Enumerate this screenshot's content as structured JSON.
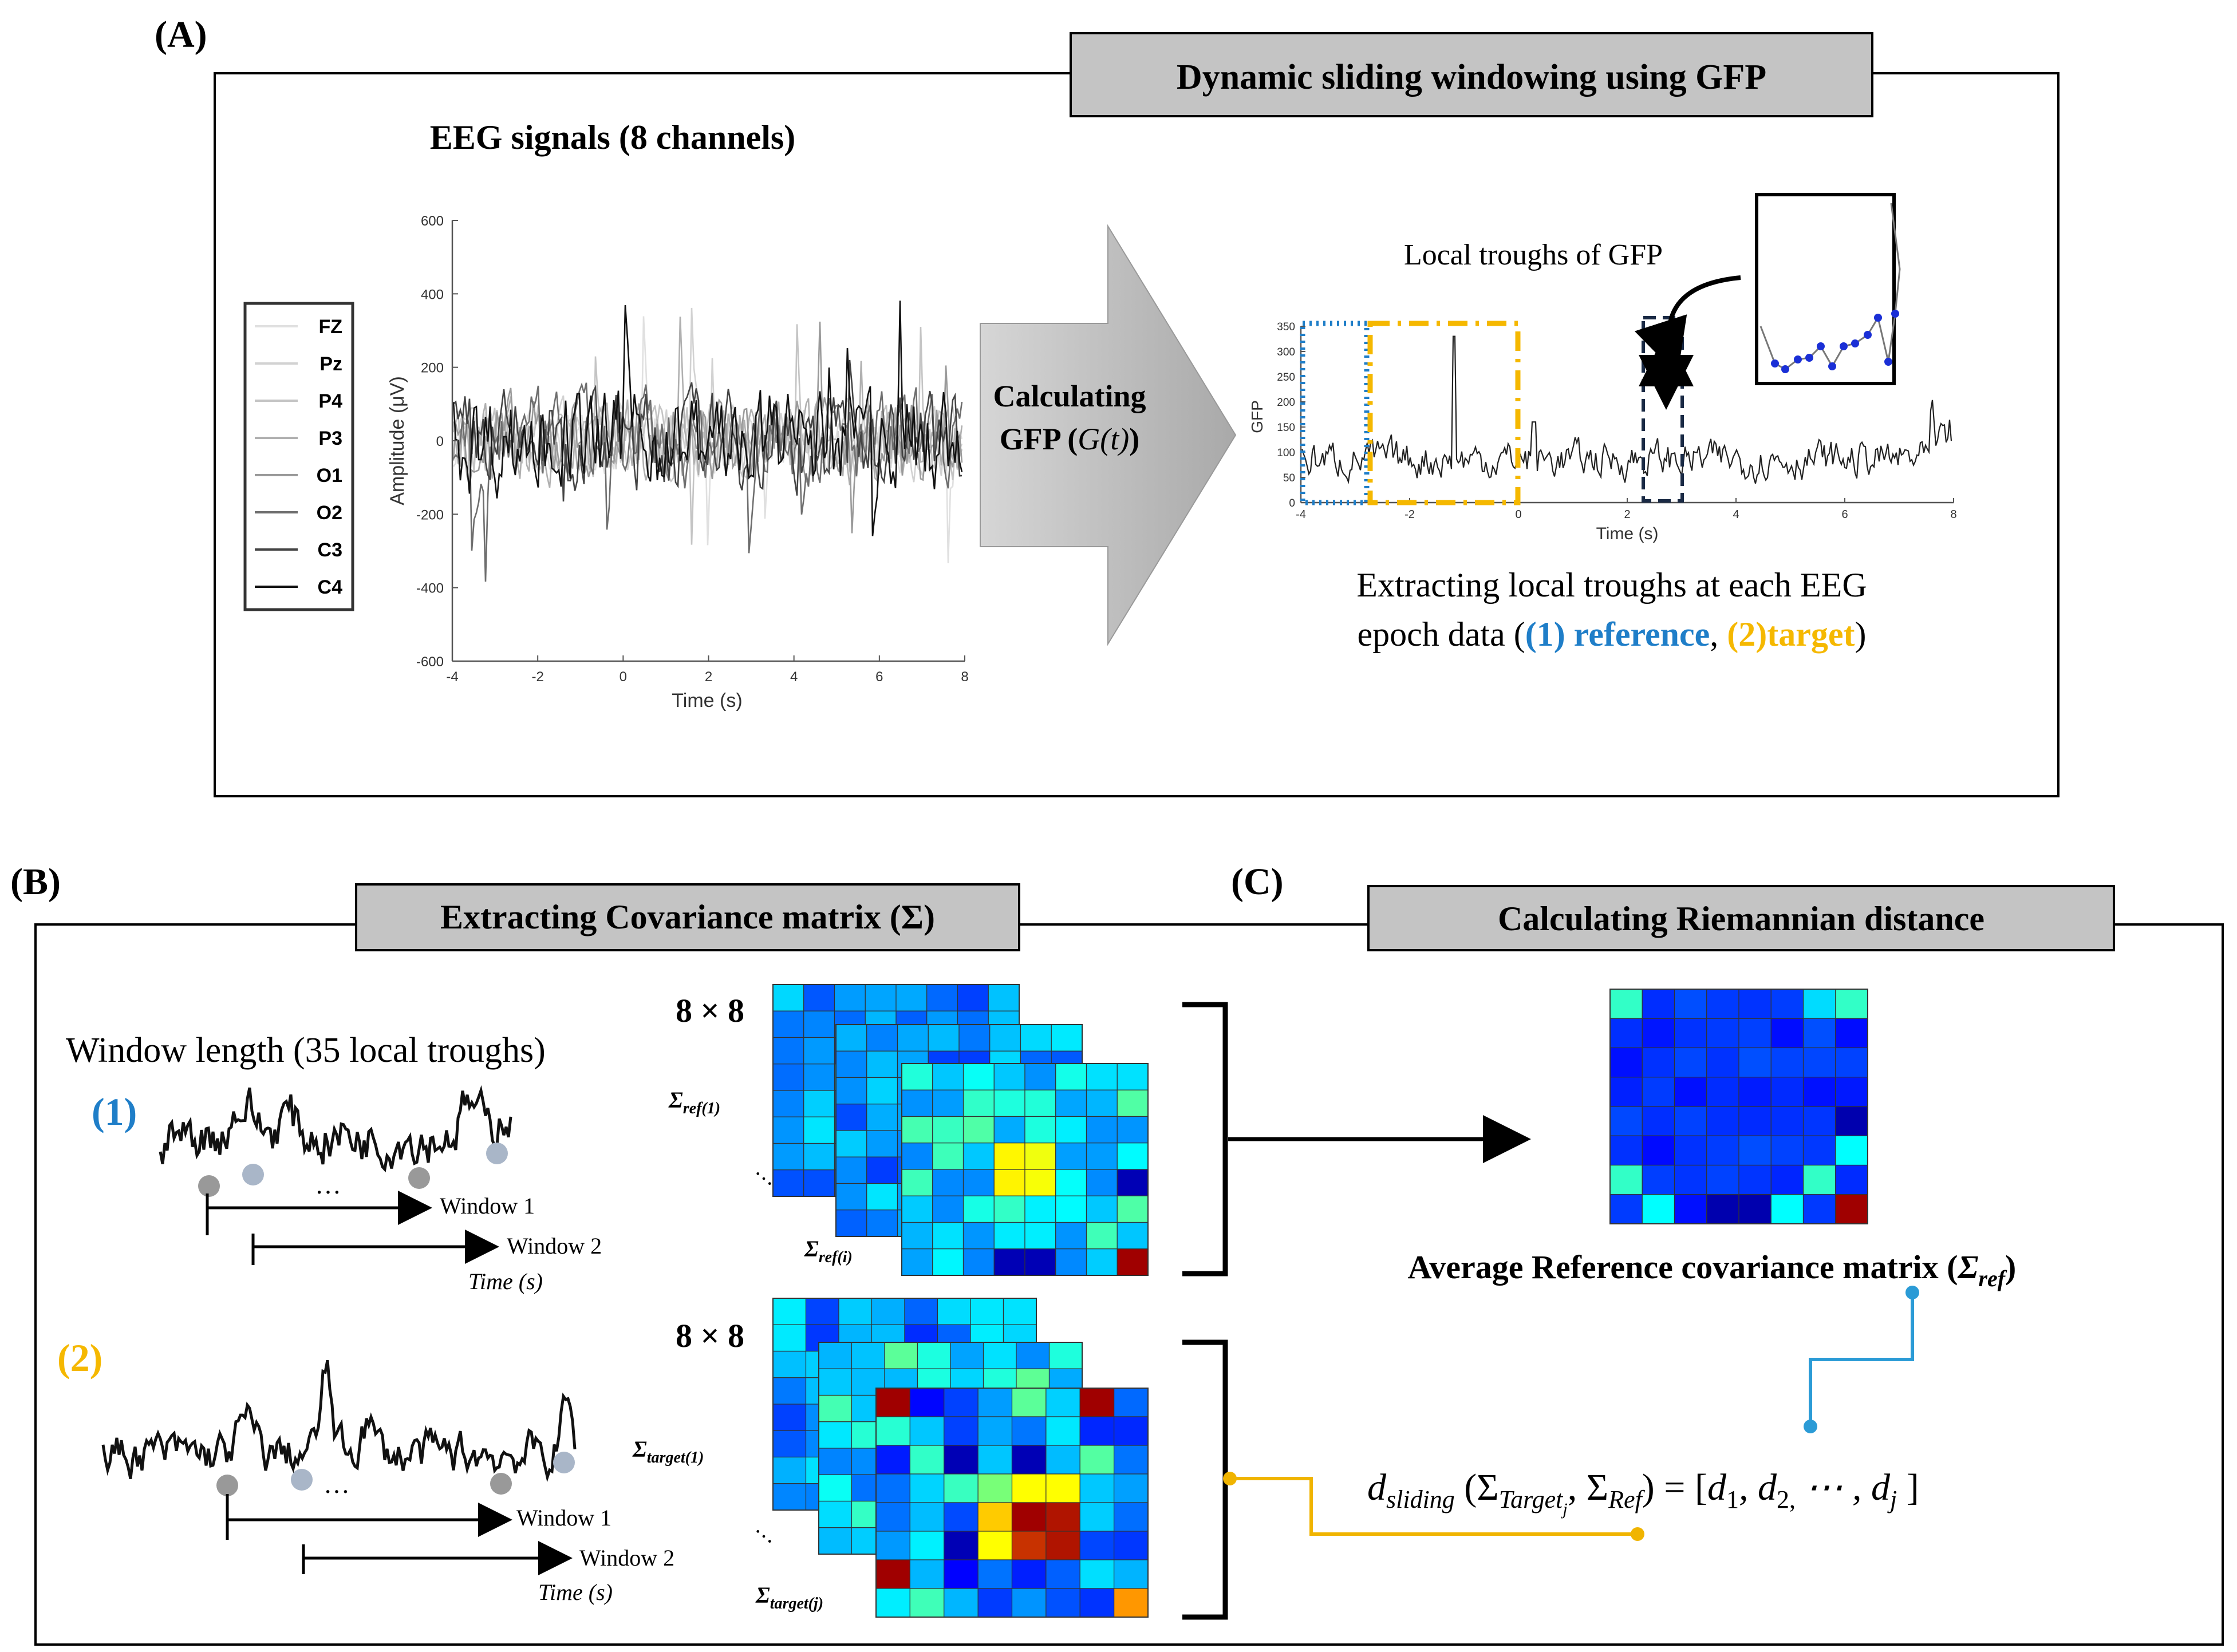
{
  "panel_a": {
    "label": "(A)",
    "banner": "Dynamic sliding windowing using GFP",
    "eeg_title": "EEG signals (8 channels)",
    "eeg_plot": {
      "ylabel": "Amplitude (μV)",
      "xlabel": "Time (s)",
      "yticks": [
        "600",
        "400",
        "200",
        "0",
        "-200",
        "-400",
        "-600"
      ],
      "xticks": [
        "-4",
        "-2",
        "0",
        "2",
        "4",
        "6",
        "8"
      ],
      "legend": [
        "FZ",
        "Pz",
        "P4",
        "P3",
        "O1",
        "O2",
        "C3",
        "C4"
      ]
    },
    "arrow_text": [
      "Calculating",
      "GFP (",
      "G(t)",
      ")"
    ],
    "gfp_plot": {
      "ylabel": "GFP",
      "xlabel": "Time (s)",
      "yticks": [
        "350",
        "300",
        "250",
        "200",
        "150",
        "100",
        "50",
        "0"
      ],
      "xticks": [
        "-4",
        "-2",
        "0",
        "2",
        "4",
        "6",
        "8"
      ]
    },
    "inset_label": "Local troughs of GFP",
    "caption_line1": "Extracting  local troughs at each EEG",
    "caption_line2_a": "epoch data (",
    "caption_ref": "(1) reference",
    "caption_comma": ", ",
    "caption_target": "(2)target",
    "caption_close": ")"
  },
  "panel_b": {
    "label": "(B)",
    "banner": "Extracting Covariance matrix (Σ)",
    "window_length": "Window length (35 local troughs)",
    "series1_label": "(1)",
    "series2_label": "(2)",
    "window1": "Window 1",
    "window2": "Window 2",
    "time_label": "Time (s)",
    "ellipsis": "…",
    "size_label": "8 × 8",
    "sigma_ref1": "Σ",
    "sigma_ref1_sub": "ref(1)",
    "sigma_refi_sub": "ref(i)",
    "sigma_target1_sub": "target(1)",
    "sigma_targetj_sub": "target(j)"
  },
  "panel_c": {
    "label": "(C)",
    "banner": "Calculating Riemannian distance",
    "avg_title": "Average Reference covariance matrix (",
    "avg_sigma": "Σ",
    "avg_sub": "ref",
    "avg_close": ")",
    "formula": {
      "d": "d",
      "d_sub": "sliding",
      "open": " (Σ",
      "target_sub": "Target",
      "j_sub": "j",
      "comma": ", Σ",
      "ref_sub": "Ref",
      "eq": ") = [",
      "d1": "d",
      "s1": "1",
      "c1": ", d",
      "s2": "2,",
      "dots": " ⋯ , d",
      "sj": "j",
      "end": " ]"
    }
  },
  "colors": {
    "reference": "#1f7ec8",
    "target": "#f5b800",
    "banner_bg": "#c4c4c4",
    "connector_blue": "#2b9bd6",
    "connector_yellow": "#f0b400"
  }
}
